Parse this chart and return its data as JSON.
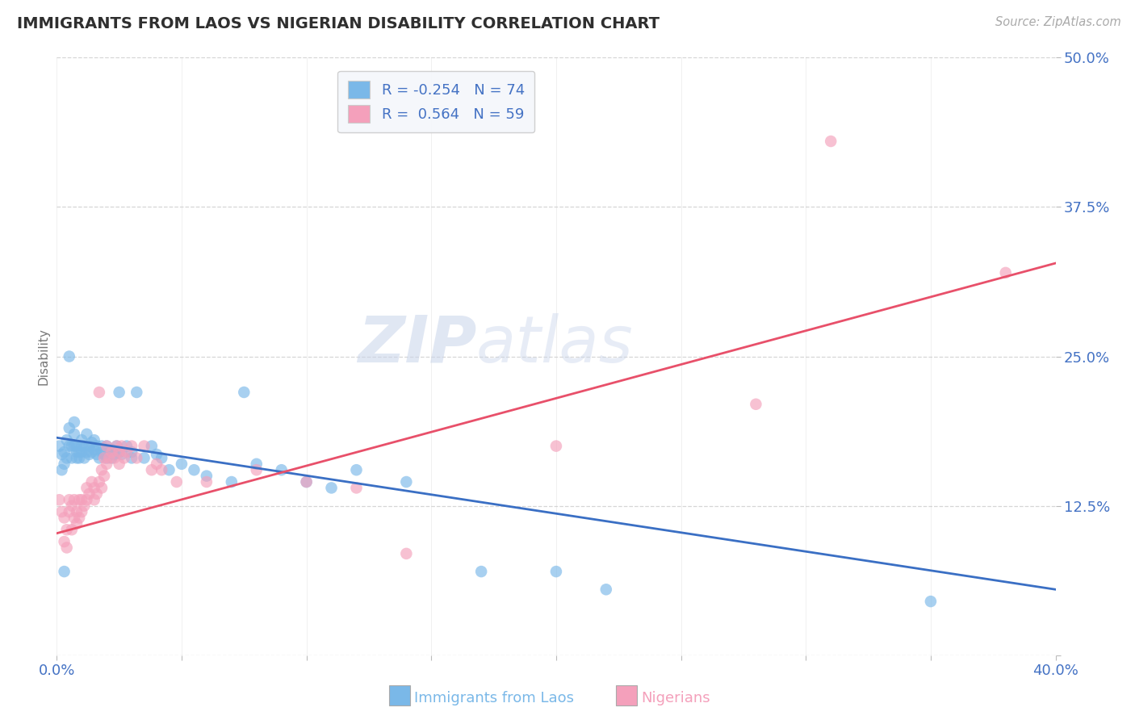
{
  "title": "IMMIGRANTS FROM LAOS VS NIGERIAN DISABILITY CORRELATION CHART",
  "source": "Source: ZipAtlas.com",
  "xlabel_left": "Immigrants from Laos",
  "xlabel_right": "Nigerians",
  "ylabel": "Disability",
  "xlim": [
    0.0,
    0.4
  ],
  "ylim": [
    0.0,
    0.5
  ],
  "blue_R": -0.254,
  "blue_N": 74,
  "pink_R": 0.564,
  "pink_N": 59,
  "blue_color": "#7ab8e8",
  "pink_color": "#f4a0bb",
  "blue_line_color": "#3a6fc4",
  "pink_line_color": "#e8506a",
  "axis_label_color": "#4472c4",
  "title_color": "#2f2f2f",
  "watermark_zip": "ZIP",
  "watermark_atlas": "atlas",
  "blue_trend": [
    0.0,
    0.4,
    0.182,
    0.055
  ],
  "pink_trend": [
    0.0,
    0.4,
    0.102,
    0.328
  ],
  "blue_scatter": [
    [
      0.001,
      0.175
    ],
    [
      0.002,
      0.168
    ],
    [
      0.002,
      0.155
    ],
    [
      0.003,
      0.17
    ],
    [
      0.003,
      0.16
    ],
    [
      0.004,
      0.18
    ],
    [
      0.004,
      0.165
    ],
    [
      0.005,
      0.175
    ],
    [
      0.005,
      0.19
    ],
    [
      0.005,
      0.25
    ],
    [
      0.006,
      0.165
    ],
    [
      0.006,
      0.175
    ],
    [
      0.007,
      0.185
    ],
    [
      0.007,
      0.195
    ],
    [
      0.007,
      0.175
    ],
    [
      0.008,
      0.17
    ],
    [
      0.008,
      0.165
    ],
    [
      0.008,
      0.175
    ],
    [
      0.009,
      0.165
    ],
    [
      0.009,
      0.17
    ],
    [
      0.01,
      0.175
    ],
    [
      0.01,
      0.18
    ],
    [
      0.01,
      0.17
    ],
    [
      0.011,
      0.165
    ],
    [
      0.011,
      0.175
    ],
    [
      0.012,
      0.17
    ],
    [
      0.012,
      0.185
    ],
    [
      0.013,
      0.175
    ],
    [
      0.013,
      0.168
    ],
    [
      0.014,
      0.178
    ],
    [
      0.014,
      0.17
    ],
    [
      0.015,
      0.18
    ],
    [
      0.015,
      0.172
    ],
    [
      0.016,
      0.168
    ],
    [
      0.016,
      0.175
    ],
    [
      0.017,
      0.165
    ],
    [
      0.018,
      0.17
    ],
    [
      0.018,
      0.175
    ],
    [
      0.019,
      0.168
    ],
    [
      0.02,
      0.165
    ],
    [
      0.02,
      0.175
    ],
    [
      0.021,
      0.17
    ],
    [
      0.022,
      0.165
    ],
    [
      0.022,
      0.172
    ],
    [
      0.023,
      0.168
    ],
    [
      0.024,
      0.175
    ],
    [
      0.025,
      0.17
    ],
    [
      0.025,
      0.22
    ],
    [
      0.026,
      0.168
    ],
    [
      0.028,
      0.175
    ],
    [
      0.03,
      0.165
    ],
    [
      0.03,
      0.17
    ],
    [
      0.032,
      0.22
    ],
    [
      0.035,
      0.165
    ],
    [
      0.038,
      0.175
    ],
    [
      0.04,
      0.168
    ],
    [
      0.042,
      0.165
    ],
    [
      0.045,
      0.155
    ],
    [
      0.05,
      0.16
    ],
    [
      0.055,
      0.155
    ],
    [
      0.06,
      0.15
    ],
    [
      0.07,
      0.145
    ],
    [
      0.075,
      0.22
    ],
    [
      0.08,
      0.16
    ],
    [
      0.09,
      0.155
    ],
    [
      0.1,
      0.145
    ],
    [
      0.11,
      0.14
    ],
    [
      0.12,
      0.155
    ],
    [
      0.14,
      0.145
    ],
    [
      0.17,
      0.07
    ],
    [
      0.003,
      0.07
    ],
    [
      0.2,
      0.07
    ],
    [
      0.22,
      0.055
    ],
    [
      0.35,
      0.045
    ]
  ],
  "pink_scatter": [
    [
      0.001,
      0.13
    ],
    [
      0.002,
      0.12
    ],
    [
      0.003,
      0.115
    ],
    [
      0.003,
      0.095
    ],
    [
      0.004,
      0.105
    ],
    [
      0.004,
      0.09
    ],
    [
      0.005,
      0.13
    ],
    [
      0.005,
      0.12
    ],
    [
      0.006,
      0.105
    ],
    [
      0.006,
      0.125
    ],
    [
      0.007,
      0.13
    ],
    [
      0.007,
      0.115
    ],
    [
      0.008,
      0.11
    ],
    [
      0.008,
      0.12
    ],
    [
      0.009,
      0.13
    ],
    [
      0.009,
      0.115
    ],
    [
      0.01,
      0.13
    ],
    [
      0.01,
      0.12
    ],
    [
      0.011,
      0.125
    ],
    [
      0.012,
      0.14
    ],
    [
      0.012,
      0.13
    ],
    [
      0.013,
      0.135
    ],
    [
      0.014,
      0.145
    ],
    [
      0.015,
      0.14
    ],
    [
      0.015,
      0.13
    ],
    [
      0.016,
      0.135
    ],
    [
      0.017,
      0.145
    ],
    [
      0.017,
      0.22
    ],
    [
      0.018,
      0.155
    ],
    [
      0.018,
      0.14
    ],
    [
      0.019,
      0.15
    ],
    [
      0.019,
      0.165
    ],
    [
      0.02,
      0.175
    ],
    [
      0.02,
      0.16
    ],
    [
      0.021,
      0.165
    ],
    [
      0.022,
      0.17
    ],
    [
      0.023,
      0.165
    ],
    [
      0.024,
      0.175
    ],
    [
      0.025,
      0.17
    ],
    [
      0.025,
      0.16
    ],
    [
      0.026,
      0.175
    ],
    [
      0.027,
      0.165
    ],
    [
      0.028,
      0.17
    ],
    [
      0.03,
      0.175
    ],
    [
      0.032,
      0.165
    ],
    [
      0.035,
      0.175
    ],
    [
      0.038,
      0.155
    ],
    [
      0.04,
      0.16
    ],
    [
      0.042,
      0.155
    ],
    [
      0.048,
      0.145
    ],
    [
      0.06,
      0.145
    ],
    [
      0.08,
      0.155
    ],
    [
      0.1,
      0.145
    ],
    [
      0.12,
      0.14
    ],
    [
      0.14,
      0.085
    ],
    [
      0.2,
      0.175
    ],
    [
      0.28,
      0.21
    ],
    [
      0.31,
      0.43
    ],
    [
      0.38,
      0.32
    ]
  ]
}
